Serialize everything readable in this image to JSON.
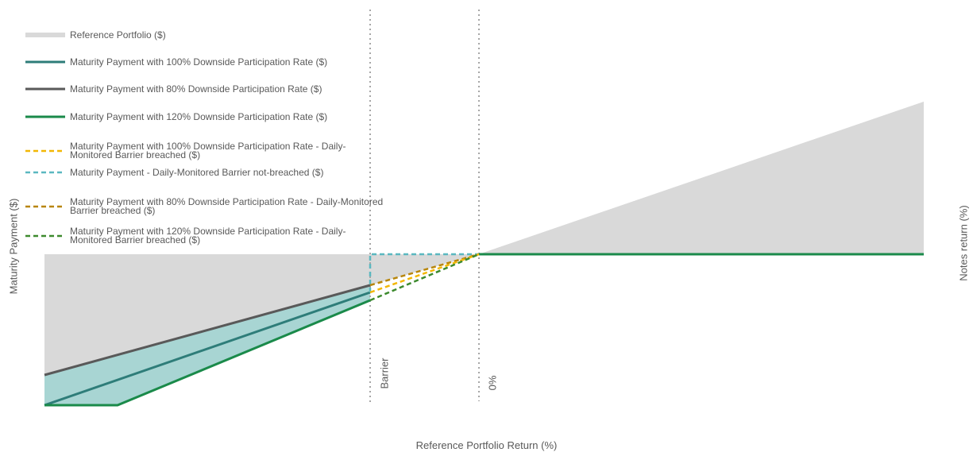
{
  "chart_data": {
    "type": "area",
    "title": "",
    "xlabel": "Reference Portfolio Return (%)",
    "ylabel_left": "Maturity Payment ($)",
    "ylabel_right": "Notes return (%)",
    "vertical_markers": [
      {
        "label": "Barrier",
        "key": "barrier"
      },
      {
        "label": "0%",
        "key": "zero"
      }
    ],
    "legend": [
      {
        "name": "Reference Portfolio ($)",
        "style": "area",
        "color": "#d9d9d9"
      },
      {
        "name": "Maturity Payment with 100% Downside Participation Rate ($)",
        "style": "solid",
        "color": "#2e7d79"
      },
      {
        "name": "Maturity Payment with 80% Downside Participation Rate ($)",
        "style": "solid",
        "color": "#595959"
      },
      {
        "name": "Maturity Payment with 120% Downside Participation Rate ($)",
        "style": "solid",
        "color": "#1a8a4a"
      },
      {
        "name": "Maturity Payment with 100% Downside Participation Rate - Daily-Monitored Barrier breached ($)",
        "style": "dashed",
        "color": "#f2b705"
      },
      {
        "name": "Maturity Payment  - Daily-Monitored Barrier not-breached ($)",
        "style": "dashed",
        "color": "#5bb8c0"
      },
      {
        "name": "Maturity Payment with 80% Downside Participation Rate - Daily-Monitored Barrier breached ($)",
        "style": "dashed",
        "color": "#b8860b"
      },
      {
        "name": "Maturity Payment with 120% Downside Participation Rate - Daily-Monitored Barrier breached ($)",
        "style": "dashed",
        "color": "#3d8a2e"
      }
    ],
    "colors": {
      "reference_area": "#d9d9d9",
      "downside_band": "#a8d5d3",
      "participation_100": "#2e7d79",
      "participation_80": "#595959",
      "participation_120": "#1a8a4a",
      "marker_line": "#a6a6a6"
    },
    "grid": false,
    "legend_position": "top-left",
    "note": ""
  }
}
